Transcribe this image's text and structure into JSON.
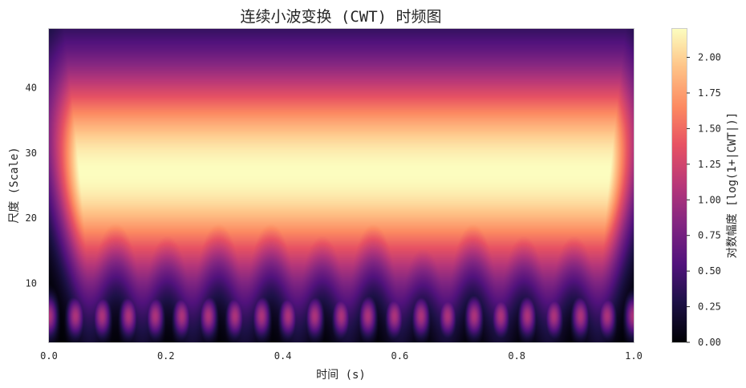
{
  "chart_data": {
    "type": "heatmap",
    "title": "连续小波变换 (CWT) 时频图",
    "xlabel": "时间 (s)",
    "ylabel": "尺度 (Scale)",
    "xlim": [
      0.0,
      1.0
    ],
    "ylim": [
      1,
      49
    ],
    "xticks": [
      0.0,
      0.2,
      0.4,
      0.6,
      0.8,
      1.0
    ],
    "xtick_labels": [
      "0.0",
      "0.2",
      "0.4",
      "0.6",
      "0.8",
      "1.0"
    ],
    "yticks": [
      10,
      20,
      30,
      40
    ],
    "ytick_labels": [
      "10",
      "20",
      "30",
      "40"
    ],
    "colormap": "magma",
    "colorbar": {
      "label": "对数幅度 [log(1+|CWT|)]",
      "range": [
        0.0,
        2.2
      ],
      "ticks": [
        0.0,
        0.25,
        0.5,
        0.75,
        1.0,
        1.25,
        1.5,
        1.75,
        2.0
      ],
      "tick_labels": [
        "0.00",
        "0.25",
        "0.50",
        "0.75",
        "1.00",
        "1.25",
        "1.50",
        "1.75",
        "2.00"
      ]
    },
    "grid": false,
    "peak_times": [
      0.07,
      0.16,
      0.245,
      0.335,
      0.425,
      0.51,
      0.6,
      0.68,
      0.77,
      0.855,
      0.94
    ],
    "peak_value": 2.2
  }
}
